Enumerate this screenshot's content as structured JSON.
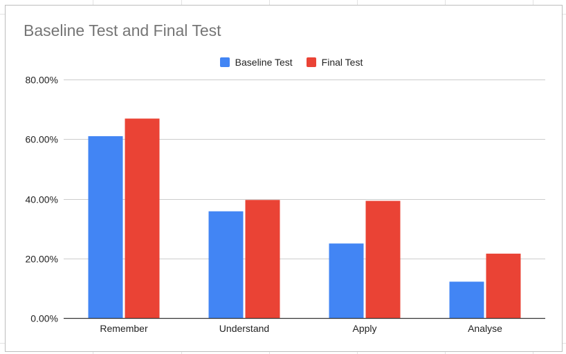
{
  "chart_data": {
    "type": "bar",
    "title": "Baseline Test and Final Test",
    "categories": [
      "Remember",
      "Understand",
      "Apply",
      "Analyse"
    ],
    "series": [
      {
        "name": "Baseline Test",
        "color": "#4285f4",
        "values": [
          61.0,
          35.8,
          25.0,
          12.2
        ]
      },
      {
        "name": "Final Test",
        "color": "#ea4335",
        "values": [
          66.9,
          39.6,
          39.3,
          21.6
        ]
      }
    ],
    "ylim": [
      0,
      80
    ],
    "yticks": [
      "0.00%",
      "20.00%",
      "40.00%",
      "60.00%",
      "80.00%"
    ],
    "ytick_values": [
      0,
      20,
      40,
      60,
      80
    ],
    "xlabel": "",
    "ylabel": "",
    "grid": true,
    "legend_position": "top"
  }
}
